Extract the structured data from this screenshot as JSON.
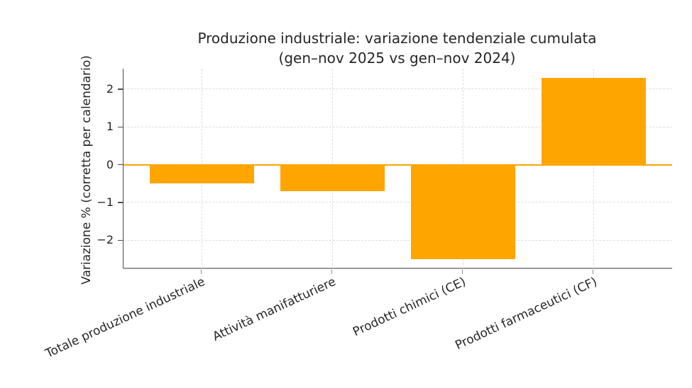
{
  "chart_data": {
    "type": "bar",
    "title": "Produzione industriale: variazione tendenziale cumulata",
    "subtitle": "(gen–nov 2025 vs gen–nov 2024)",
    "ylabel": "Variazione % (corretta per calendario)",
    "xlabel": "",
    "categories": [
      "Totale produzione industriale",
      "Attività manifatturiere",
      "Prodotti chimici (CE)",
      "Prodotti farmaceutici (CF)"
    ],
    "values": [
      -0.5,
      -0.7,
      -2.5,
      2.3
    ],
    "bar_color": "#FFA500",
    "zero_line_color": "#FFA500",
    "grid": true,
    "legend": "none",
    "yticks": [
      {
        "value": 2,
        "label": "2"
      },
      {
        "value": 1,
        "label": "1"
      },
      {
        "value": 0,
        "label": "0"
      },
      {
        "value": -1,
        "label": "−1"
      },
      {
        "value": -2,
        "label": "−2"
      }
    ],
    "ylim": [
      -2.74,
      2.54
    ],
    "bar_width_fraction": 0.8
  }
}
